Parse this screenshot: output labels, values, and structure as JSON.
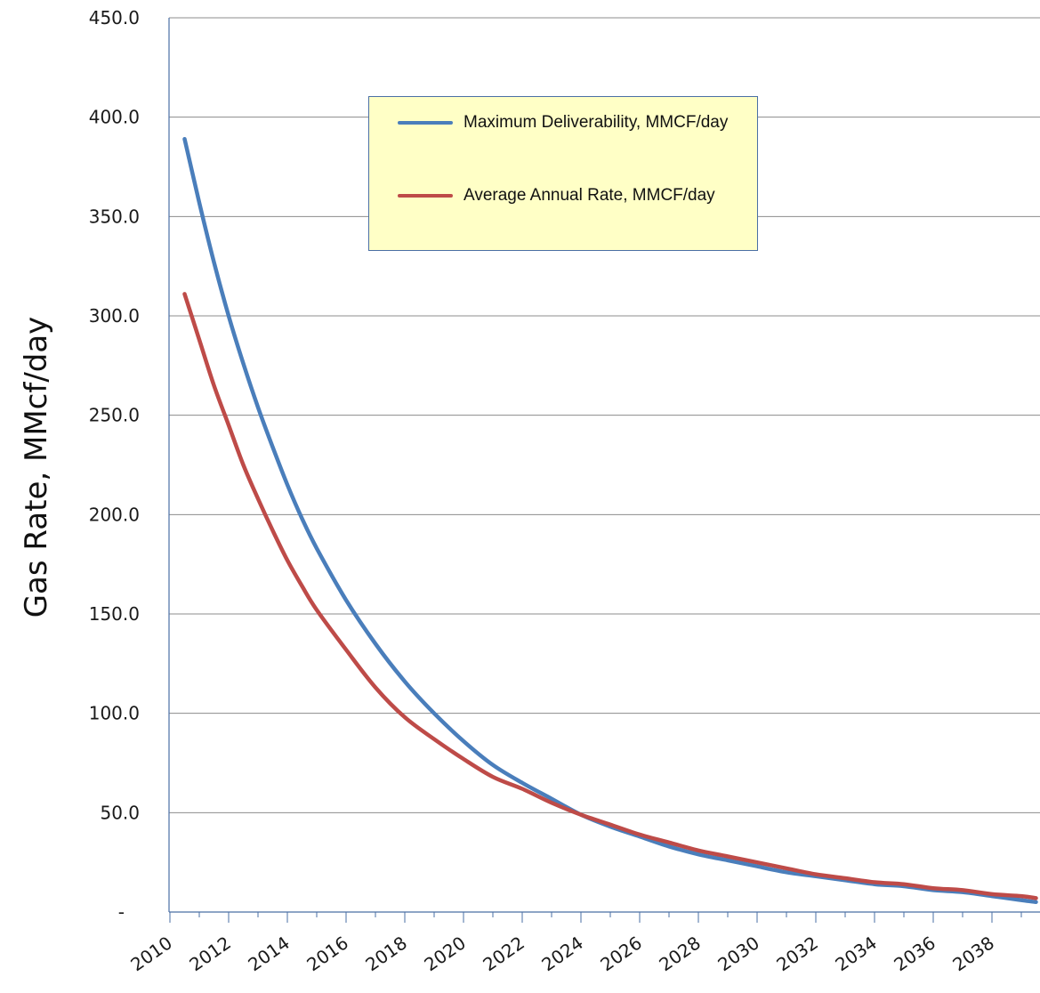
{
  "chart_data": {
    "type": "line",
    "title": "",
    "ylabel": "Gas Rate, MMcf/day",
    "xlabel": "",
    "ylim": [
      0,
      450
    ],
    "xlim": [
      2010,
      2039.5
    ],
    "y_ticks": [
      "-",
      "50.0",
      "100.0",
      "150.0",
      "200.0",
      "250.0",
      "300.0",
      "350.0",
      "400.0",
      "450.0"
    ],
    "y_tick_values": [
      0,
      50,
      100,
      150,
      200,
      250,
      300,
      350,
      400,
      450
    ],
    "x_ticks": [
      "2010",
      "2012",
      "2014",
      "2016",
      "2018",
      "2020",
      "2022",
      "2024",
      "2026",
      "2028",
      "2030",
      "2032",
      "2034",
      "2036",
      "2038"
    ],
    "grid": "horizontal",
    "legend_position": "top-center",
    "series": [
      {
        "name": "Maximum Deliverability, MMCF/day",
        "color": "#4a7ebb",
        "x": [
          2010.5,
          2011,
          2011.5,
          2012,
          2012.5,
          2013,
          2013.5,
          2014,
          2014.5,
          2015,
          2016,
          2017,
          2018,
          2019,
          2020,
          2021,
          2022,
          2023,
          2024,
          2025,
          2026,
          2027,
          2028,
          2029,
          2030,
          2031,
          2032,
          2033,
          2034,
          2035,
          2036,
          2037,
          2038,
          2039,
          2039.5
        ],
        "y": [
          389,
          357,
          327,
          300,
          276,
          254,
          234,
          215,
          198,
          183,
          157,
          135,
          116,
          100,
          86,
          74,
          65,
          57,
          49,
          43,
          38,
          33,
          29,
          26,
          23,
          20,
          18,
          16,
          14,
          13,
          11,
          10,
          8,
          6,
          5
        ]
      },
      {
        "name": "Average Annual Rate, MMCF/day",
        "color": "#be4b48",
        "x": [
          2010.5,
          2011,
          2011.5,
          2012,
          2012.5,
          2013,
          2013.5,
          2014,
          2014.5,
          2015,
          2016,
          2017,
          2018,
          2019,
          2020,
          2021,
          2022,
          2023,
          2024,
          2025,
          2026,
          2027,
          2028,
          2029,
          2030,
          2031,
          2032,
          2033,
          2034,
          2035,
          2036,
          2037,
          2038,
          2039,
          2039.5
        ],
        "y": [
          311,
          288,
          265,
          245,
          225,
          208,
          192,
          177,
          164,
          152,
          132,
          113,
          98,
          87,
          77,
          68,
          62,
          55,
          49,
          44,
          39,
          35,
          31,
          28,
          25,
          22,
          19,
          17,
          15,
          14,
          12,
          11,
          9,
          8,
          7
        ]
      }
    ]
  }
}
